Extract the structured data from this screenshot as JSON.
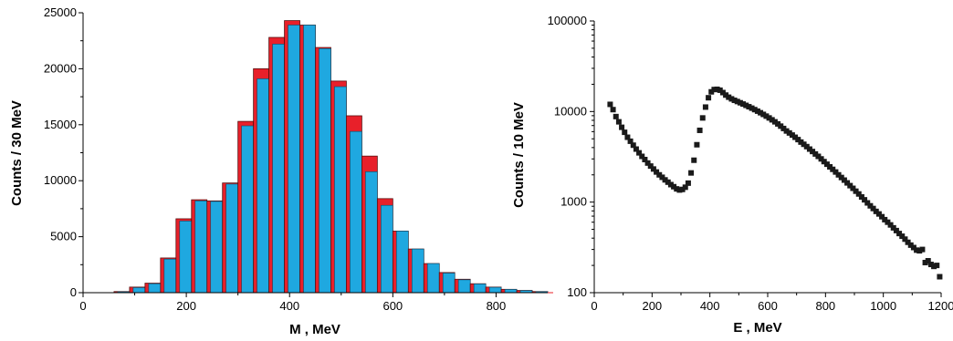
{
  "chart_data": [
    {
      "type": "bar",
      "xlabel": "M  ,  MeV",
      "ylabel": "Counts  /  30 MeV",
      "xlim": [
        0,
        900
      ],
      "ylim": [
        0,
        25000
      ],
      "x_ticks": [
        0,
        200,
        400,
        600,
        800
      ],
      "y_ticks": [
        0,
        5000,
        10000,
        15000,
        20000,
        25000
      ],
      "x_tick_labels": [
        "0",
        "200",
        "400",
        "600",
        "800"
      ],
      "y_tick_labels": [
        "0",
        "5000",
        "10000",
        "15000",
        "20000",
        "25000"
      ],
      "bin_width": 30,
      "bin_centers": [
        75,
        105,
        135,
        165,
        195,
        225,
        255,
        285,
        315,
        345,
        375,
        405,
        435,
        465,
        495,
        525,
        555,
        585,
        615,
        645,
        675,
        705,
        735,
        765,
        795,
        825,
        855,
        885
      ],
      "series": [
        {
          "color": "#e8202a",
          "values": [
            100,
            500,
            850,
            3100,
            6600,
            8300,
            8200,
            9800,
            15300,
            20000,
            22800,
            24300,
            23900,
            21900,
            18900,
            15800,
            12200,
            8400,
            5500,
            3900,
            2600,
            1800,
            1200,
            800,
            500,
            300,
            200,
            100
          ]
        },
        {
          "color": "#1fa8e0",
          "values": [
            80,
            450,
            800,
            3000,
            6400,
            8200,
            8150,
            9700,
            14900,
            19100,
            22200,
            23900,
            23900,
            21800,
            18400,
            14400,
            10800,
            7800,
            5500,
            3900,
            2600,
            1750,
            1150,
            780,
            480,
            290,
            190,
            90
          ]
        }
      ]
    },
    {
      "type": "scatter",
      "xlabel": "E  ,  MeV",
      "ylabel": "Counts  /  10 MeV",
      "xlim": [
        0,
        1200
      ],
      "ylim": [
        100,
        100000
      ],
      "yscale": "log",
      "x_ticks": [
        0,
        200,
        400,
        600,
        800,
        1000,
        1200
      ],
      "y_ticks": [
        100,
        1000,
        10000,
        100000
      ],
      "x_tick_labels": [
        "0",
        "200",
        "400",
        "600",
        "800",
        "1000",
        "1200"
      ],
      "y_tick_labels": [
        "100",
        "1000",
        "10000",
        "100000"
      ],
      "marker_color": "#1a1a1a",
      "points": [
        [
          55,
          12000
        ],
        [
          65,
          10500
        ],
        [
          75,
          8800
        ],
        [
          85,
          7700
        ],
        [
          95,
          6700
        ],
        [
          105,
          5900
        ],
        [
          115,
          5200
        ],
        [
          125,
          4700
        ],
        [
          135,
          4250
        ],
        [
          145,
          3850
        ],
        [
          155,
          3500
        ],
        [
          165,
          3200
        ],
        [
          175,
          2950
        ],
        [
          185,
          2700
        ],
        [
          195,
          2500
        ],
        [
          205,
          2320
        ],
        [
          215,
          2150
        ],
        [
          225,
          2000
        ],
        [
          235,
          1880
        ],
        [
          245,
          1760
        ],
        [
          255,
          1660
        ],
        [
          265,
          1560
        ],
        [
          275,
          1480
        ],
        [
          285,
          1400
        ],
        [
          295,
          1360
        ],
        [
          305,
          1380
        ],
        [
          315,
          1460
        ],
        [
          325,
          1620
        ],
        [
          335,
          2100
        ],
        [
          345,
          2900
        ],
        [
          355,
          4300
        ],
        [
          365,
          6200
        ],
        [
          375,
          8500
        ],
        [
          385,
          11200
        ],
        [
          395,
          14200
        ],
        [
          405,
          16500
        ],
        [
          415,
          17500
        ],
        [
          425,
          17600
        ],
        [
          435,
          17200
        ],
        [
          445,
          16200
        ],
        [
          455,
          15200
        ],
        [
          465,
          14400
        ],
        [
          475,
          13800
        ],
        [
          485,
          13300
        ],
        [
          495,
          12900
        ],
        [
          505,
          12500
        ],
        [
          515,
          12100
        ],
        [
          525,
          11700
        ],
        [
          535,
          11300
        ],
        [
          545,
          10900
        ],
        [
          555,
          10500
        ],
        [
          565,
          10100
        ],
        [
          575,
          9700
        ],
        [
          585,
          9300
        ],
        [
          595,
          8900
        ],
        [
          605,
          8500
        ],
        [
          615,
          8100
        ],
        [
          625,
          7700
        ],
        [
          635,
          7300
        ],
        [
          645,
          6900
        ],
        [
          655,
          6500
        ],
        [
          665,
          6100
        ],
        [
          675,
          5800
        ],
        [
          685,
          5500
        ],
        [
          695,
          5200
        ],
        [
          705,
          4900
        ],
        [
          715,
          4600
        ],
        [
          725,
          4350
        ],
        [
          735,
          4100
        ],
        [
          745,
          3850
        ],
        [
          755,
          3620
        ],
        [
          765,
          3400
        ],
        [
          775,
          3200
        ],
        [
          785,
          3000
        ],
        [
          795,
          2800
        ],
        [
          805,
          2620
        ],
        [
          815,
          2450
        ],
        [
          825,
          2300
        ],
        [
          835,
          2150
        ],
        [
          845,
          2000
        ],
        [
          855,
          1870
        ],
        [
          865,
          1750
        ],
        [
          875,
          1630
        ],
        [
          885,
          1520
        ],
        [
          895,
          1420
        ],
        [
          905,
          1320
        ],
        [
          915,
          1230
        ],
        [
          925,
          1140
        ],
        [
          935,
          1060
        ],
        [
          945,
          980
        ],
        [
          955,
          910
        ],
        [
          965,
          850
        ],
        [
          975,
          790
        ],
        [
          985,
          740
        ],
        [
          995,
          690
        ],
        [
          1005,
          640
        ],
        [
          1015,
          600
        ],
        [
          1025,
          560
        ],
        [
          1035,
          520
        ],
        [
          1045,
          485
        ],
        [
          1055,
          450
        ],
        [
          1065,
          420
        ],
        [
          1075,
          390
        ],
        [
          1085,
          360
        ],
        [
          1095,
          335
        ],
        [
          1105,
          315
        ],
        [
          1115,
          295
        ],
        [
          1125,
          290
        ],
        [
          1135,
          300
        ],
        [
          1145,
          215
        ],
        [
          1155,
          225
        ],
        [
          1165,
          205
        ],
        [
          1175,
          195
        ],
        [
          1185,
          200
        ],
        [
          1195,
          150
        ]
      ]
    }
  ]
}
